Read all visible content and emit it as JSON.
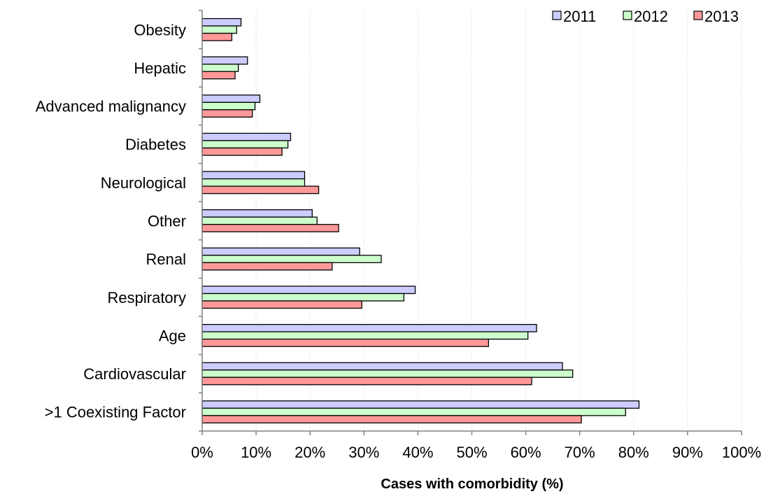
{
  "chart_data": {
    "type": "bar",
    "orientation": "horizontal",
    "title": "",
    "xlabel": "Cases with comorbidity (%)",
    "ylabel": "",
    "xlim": [
      0,
      100
    ],
    "x_ticks": [
      "0%",
      "10%",
      "20%",
      "30%",
      "40%",
      "50%",
      "60%",
      "70%",
      "80%",
      "90%",
      "100%"
    ],
    "grid": "vertical dotted",
    "legend_position": "top-right",
    "categories": [
      "Obesity",
      "Hepatic",
      "Advanced malignancy",
      "Diabetes",
      "Neurological",
      "Other",
      "Renal",
      "Respiratory",
      "Age",
      "Cardiovascular",
      ">1 Coexisting Factor"
    ],
    "series": [
      {
        "name": "2011",
        "color": "#ccccff",
        "values": [
          7.2,
          8.4,
          10.7,
          16.4,
          19.0,
          20.4,
          29.2,
          39.5,
          62.0,
          66.8,
          81.0
        ]
      },
      {
        "name": "2012",
        "color": "#ccffcc",
        "values": [
          6.4,
          6.7,
          9.8,
          15.9,
          19.0,
          21.3,
          33.2,
          37.4,
          60.4,
          68.7,
          78.5
        ]
      },
      {
        "name": "2013",
        "color": "#ff9999",
        "values": [
          5.5,
          6.1,
          9.3,
          14.8,
          21.6,
          25.3,
          24.1,
          29.6,
          53.1,
          61.1,
          70.3
        ]
      }
    ]
  }
}
